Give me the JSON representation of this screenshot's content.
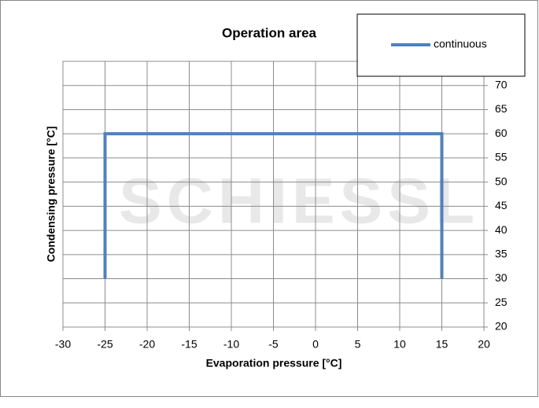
{
  "chart_data": {
    "type": "line",
    "title": "Operation area",
    "x_label": "Evaporation pressure [°C]",
    "y_label": "Condensing pressure [°C]",
    "watermark": "SCHIESSL",
    "series": [
      {
        "name": "continuous",
        "color": "#4f81bd",
        "x": [
          -25,
          -25,
          15,
          15
        ],
        "values": [
          30,
          60,
          60,
          30
        ]
      }
    ],
    "xlim": [
      -30,
      20
    ],
    "xticks": [
      -30,
      -25,
      -20,
      -15,
      -10,
      -5,
      0,
      5,
      10,
      15,
      20
    ],
    "ylim": [
      20,
      75
    ],
    "yticks": [
      20,
      25,
      30,
      35,
      40,
      45,
      50,
      55,
      60,
      65,
      70
    ],
    "grid": true,
    "legend": "top-right"
  }
}
